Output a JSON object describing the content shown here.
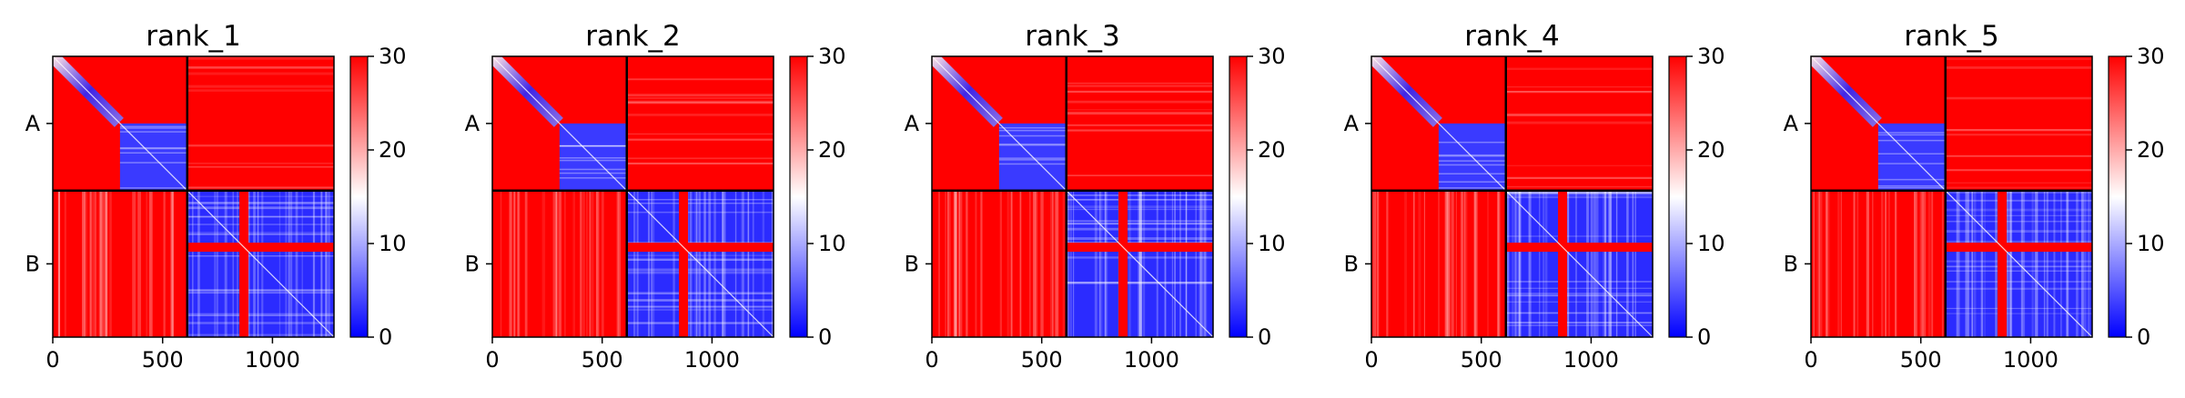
{
  "chart_data": {
    "type": "heatmap",
    "colormap": {
      "name": "bwr",
      "low": "#0000ff",
      "mid": "#ffffff",
      "high": "#ff0000"
    },
    "value_range": [
      0,
      30
    ],
    "colorbar_ticks": [
      "0",
      "10",
      "20",
      "30"
    ],
    "x_range": [
      0,
      1280
    ],
    "x_ticks": [
      0,
      500,
      1000
    ],
    "x_tick_labels": [
      "0",
      "500",
      "1000"
    ],
    "chain_boundary": 612,
    "chains": [
      "A",
      "B"
    ],
    "chain_b_feature": 870,
    "grid": false,
    "panels": [
      {
        "title": "rank_1"
      },
      {
        "title": "rank_2"
      },
      {
        "title": "rank_3"
      },
      {
        "title": "rank_4"
      },
      {
        "title": "rank_5"
      }
    ]
  }
}
